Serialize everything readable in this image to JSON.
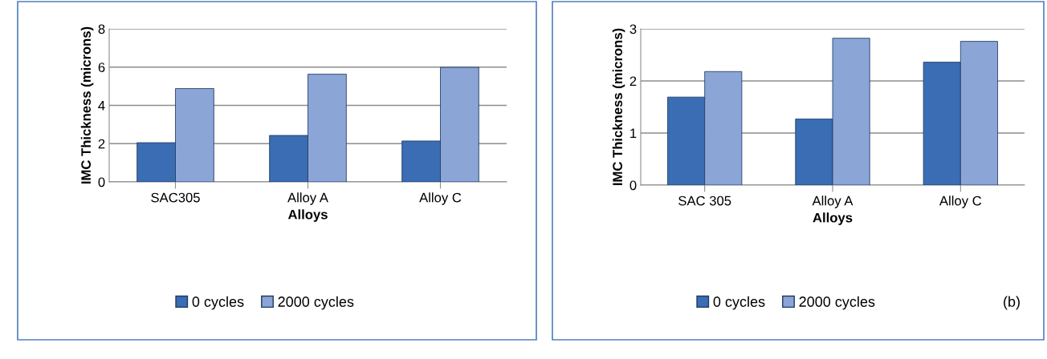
{
  "chart_data": [
    {
      "type": "bar",
      "xlabel": "Alloys",
      "ylabel": "IMC Thickness (microns)",
      "categories": [
        "SAC305",
        "Alloy A",
        "Alloy C"
      ],
      "series": [
        {
          "name": "0 cycles",
          "color": "#3a6db3",
          "values": [
            2.05,
            2.43,
            2.14
          ]
        },
        {
          "name": "2000 cycles",
          "color": "#8aa5d6",
          "values": [
            4.88,
            5.63,
            5.99
          ]
        }
      ],
      "ylim": [
        0,
        8
      ],
      "yticks": [
        0,
        2,
        4,
        6,
        8
      ],
      "grid": "y",
      "legend": "bottom"
    },
    {
      "type": "bar",
      "xlabel": "Alloys",
      "ylabel": "IMC Thickness (microns)",
      "categories": [
        "SAC 305",
        "Alloy A",
        "Alloy C"
      ],
      "series": [
        {
          "name": "0 cycles",
          "color": "#3a6db3",
          "values": [
            1.69,
            1.27,
            2.36
          ]
        },
        {
          "name": "2000 cycles",
          "color": "#8aa5d6",
          "values": [
            2.18,
            2.82,
            2.76
          ]
        }
      ],
      "ylim": [
        0,
        3
      ],
      "yticks": [
        0,
        1,
        2,
        3
      ],
      "grid": "y",
      "legend": "bottom",
      "annotations": [
        "(b)"
      ]
    }
  ]
}
